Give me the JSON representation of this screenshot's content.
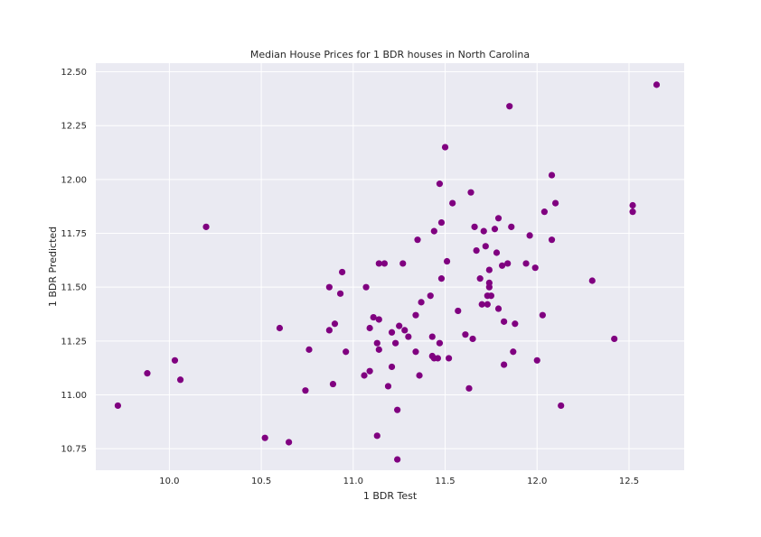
{
  "chart_data": {
    "type": "scatter",
    "title": "Median House Prices for 1 BDR houses in North Carolina",
    "xlabel": "1 BDR Test",
    "ylabel": "1 BDR Predicted",
    "xlim": [
      9.6,
      12.8
    ],
    "ylim": [
      10.65,
      12.54
    ],
    "xticks": [
      10.0,
      10.5,
      11.0,
      11.5,
      12.0,
      12.5
    ],
    "xtick_labels": [
      "10.0",
      "10.5",
      "11.0",
      "11.5",
      "12.0",
      "12.5"
    ],
    "yticks": [
      10.75,
      11.0,
      11.25,
      11.5,
      11.75,
      12.0,
      12.25,
      12.5
    ],
    "ytick_labels": [
      "10.75",
      "11.00",
      "11.25",
      "11.50",
      "11.75",
      "12.00",
      "12.25",
      "12.50"
    ],
    "grid": true,
    "background_color": "#eaeaf2",
    "point_color": "#800080",
    "points": [
      {
        "x": 9.72,
        "y": 10.95
      },
      {
        "x": 9.88,
        "y": 11.1
      },
      {
        "x": 10.03,
        "y": 11.16
      },
      {
        "x": 10.06,
        "y": 11.07
      },
      {
        "x": 10.2,
        "y": 11.78
      },
      {
        "x": 10.52,
        "y": 10.8
      },
      {
        "x": 10.6,
        "y": 11.31
      },
      {
        "x": 10.65,
        "y": 10.78
      },
      {
        "x": 10.74,
        "y": 11.02
      },
      {
        "x": 10.76,
        "y": 11.21
      },
      {
        "x": 10.87,
        "y": 11.5
      },
      {
        "x": 10.87,
        "y": 11.3
      },
      {
        "x": 10.89,
        "y": 11.05
      },
      {
        "x": 10.9,
        "y": 11.33
      },
      {
        "x": 10.93,
        "y": 11.47
      },
      {
        "x": 10.94,
        "y": 11.57
      },
      {
        "x": 10.96,
        "y": 11.2
      },
      {
        "x": 11.06,
        "y": 11.09
      },
      {
        "x": 11.07,
        "y": 11.5
      },
      {
        "x": 11.09,
        "y": 11.31
      },
      {
        "x": 11.09,
        "y": 11.11
      },
      {
        "x": 11.11,
        "y": 11.36
      },
      {
        "x": 11.13,
        "y": 10.81
      },
      {
        "x": 11.13,
        "y": 11.24
      },
      {
        "x": 11.14,
        "y": 11.21
      },
      {
        "x": 11.14,
        "y": 11.35
      },
      {
        "x": 11.14,
        "y": 11.61
      },
      {
        "x": 11.17,
        "y": 11.61
      },
      {
        "x": 11.19,
        "y": 11.04
      },
      {
        "x": 11.21,
        "y": 11.29
      },
      {
        "x": 11.21,
        "y": 11.13
      },
      {
        "x": 11.23,
        "y": 11.24
      },
      {
        "x": 11.24,
        "y": 10.93
      },
      {
        "x": 11.24,
        "y": 10.7
      },
      {
        "x": 11.25,
        "y": 11.32
      },
      {
        "x": 11.27,
        "y": 11.61
      },
      {
        "x": 11.28,
        "y": 11.3
      },
      {
        "x": 11.3,
        "y": 11.27
      },
      {
        "x": 11.34,
        "y": 11.37
      },
      {
        "x": 11.34,
        "y": 11.2
      },
      {
        "x": 11.35,
        "y": 11.72
      },
      {
        "x": 11.36,
        "y": 11.09
      },
      {
        "x": 11.37,
        "y": 11.43
      },
      {
        "x": 11.42,
        "y": 11.46
      },
      {
        "x": 11.43,
        "y": 11.27
      },
      {
        "x": 11.43,
        "y": 11.18
      },
      {
        "x": 11.44,
        "y": 11.17
      },
      {
        "x": 11.44,
        "y": 11.76
      },
      {
        "x": 11.46,
        "y": 11.17
      },
      {
        "x": 11.47,
        "y": 11.98
      },
      {
        "x": 11.47,
        "y": 11.24
      },
      {
        "x": 11.48,
        "y": 11.8
      },
      {
        "x": 11.48,
        "y": 11.54
      },
      {
        "x": 11.5,
        "y": 12.15
      },
      {
        "x": 11.51,
        "y": 11.62
      },
      {
        "x": 11.52,
        "y": 11.17
      },
      {
        "x": 11.54,
        "y": 11.89
      },
      {
        "x": 11.57,
        "y": 11.39
      },
      {
        "x": 11.61,
        "y": 11.28
      },
      {
        "x": 11.63,
        "y": 11.03
      },
      {
        "x": 11.64,
        "y": 11.94
      },
      {
        "x": 11.65,
        "y": 11.26
      },
      {
        "x": 11.66,
        "y": 11.78
      },
      {
        "x": 11.67,
        "y": 11.67
      },
      {
        "x": 11.69,
        "y": 11.54
      },
      {
        "x": 11.7,
        "y": 11.42
      },
      {
        "x": 11.71,
        "y": 11.76
      },
      {
        "x": 11.72,
        "y": 11.69
      },
      {
        "x": 11.73,
        "y": 11.46
      },
      {
        "x": 11.73,
        "y": 11.42
      },
      {
        "x": 11.74,
        "y": 11.58
      },
      {
        "x": 11.74,
        "y": 11.52
      },
      {
        "x": 11.74,
        "y": 11.5
      },
      {
        "x": 11.75,
        "y": 11.46
      },
      {
        "x": 11.77,
        "y": 11.77
      },
      {
        "x": 11.78,
        "y": 11.66
      },
      {
        "x": 11.79,
        "y": 11.4
      },
      {
        "x": 11.79,
        "y": 11.82
      },
      {
        "x": 11.81,
        "y": 11.6
      },
      {
        "x": 11.82,
        "y": 11.14
      },
      {
        "x": 11.82,
        "y": 11.34
      },
      {
        "x": 11.84,
        "y": 11.61
      },
      {
        "x": 11.85,
        "y": 12.34
      },
      {
        "x": 11.86,
        "y": 11.78
      },
      {
        "x": 11.87,
        "y": 11.2
      },
      {
        "x": 11.88,
        "y": 11.33
      },
      {
        "x": 11.94,
        "y": 11.61
      },
      {
        "x": 11.96,
        "y": 11.74
      },
      {
        "x": 11.99,
        "y": 11.59
      },
      {
        "x": 12.0,
        "y": 11.16
      },
      {
        "x": 12.03,
        "y": 11.37
      },
      {
        "x": 12.04,
        "y": 11.85
      },
      {
        "x": 12.08,
        "y": 11.72
      },
      {
        "x": 12.08,
        "y": 12.02
      },
      {
        "x": 12.1,
        "y": 11.89
      },
      {
        "x": 12.13,
        "y": 10.95
      },
      {
        "x": 12.3,
        "y": 11.53
      },
      {
        "x": 12.42,
        "y": 11.26
      },
      {
        "x": 12.52,
        "y": 11.85
      },
      {
        "x": 12.52,
        "y": 11.88
      },
      {
        "x": 12.65,
        "y": 12.44
      }
    ]
  }
}
